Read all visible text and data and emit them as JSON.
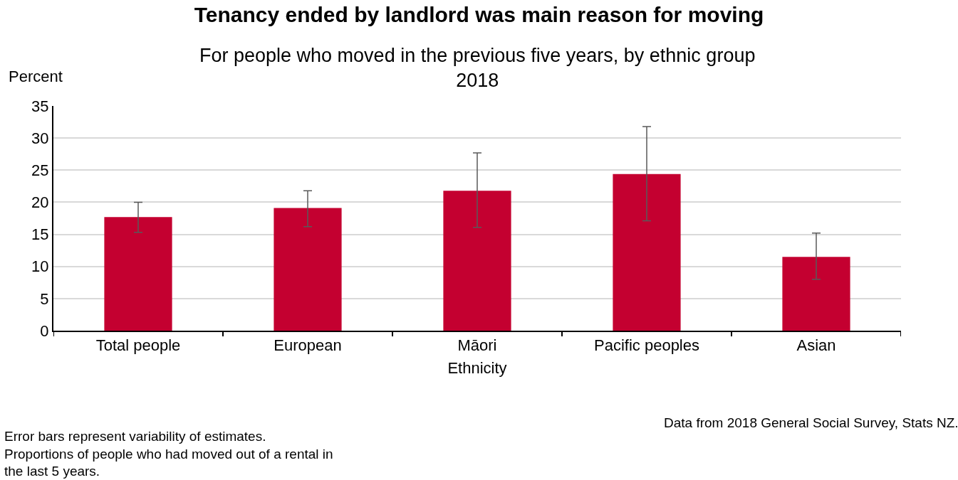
{
  "chart_data": {
    "type": "bar",
    "title": "Tenancy ended by landlord was main reason for moving",
    "subtitle": "For people who moved in the previous five years, by ethnic group\n2018",
    "xlabel": "Ethnicity",
    "ylabel": "Percent",
    "categories": [
      "Total people",
      "European",
      "Māori",
      "Pacific peoples",
      "Asian"
    ],
    "values": [
      17.7,
      19.1,
      21.8,
      24.4,
      11.5
    ],
    "errors": [
      [
        15.3,
        20.0
      ],
      [
        16.2,
        21.8
      ],
      [
        16.1,
        27.7
      ],
      [
        17.1,
        31.8
      ],
      [
        8.0,
        15.2
      ]
    ],
    "color": "#c40030",
    "ylim": [
      0,
      35
    ],
    "yticks": [
      0,
      5,
      10,
      15,
      20,
      25,
      30,
      35
    ],
    "grid": "y",
    "annotations": [
      "Data from 2018 General Social Survey, Stats NZ.",
      "Error bars represent variability of estimates.\nProportions of people who had moved out of a rental in\nthe last 5 years."
    ]
  }
}
